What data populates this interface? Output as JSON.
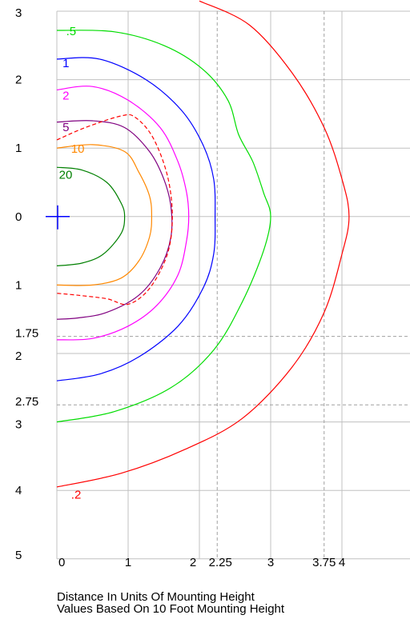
{
  "chart_data": {
    "type": "contour",
    "xlabel": "Distance In Units Of Mounting Height",
    "subtitle": "Values Based On 10 Foot Mounting Height",
    "xlim": [
      0,
      5
    ],
    "ylim": [
      -5,
      3
    ],
    "x_ticks": [
      {
        "value": 0,
        "label": "0"
      },
      {
        "value": 1,
        "label": "1"
      },
      {
        "value": 2,
        "label": "2"
      },
      {
        "value": 2.25,
        "label": "2.25"
      },
      {
        "value": 3,
        "label": "3"
      },
      {
        "value": 3.75,
        "label": "3.75"
      },
      {
        "value": 4,
        "label": "4"
      },
      {
        "value": 5,
        "label": "5"
      }
    ],
    "y_ticks": [
      {
        "value": 3,
        "label": "3"
      },
      {
        "value": 2,
        "label": "2"
      },
      {
        "value": 1,
        "label": "1"
      },
      {
        "value": 0,
        "label": "0"
      },
      {
        "value": -1,
        "label": "1"
      },
      {
        "value": -1.75,
        "label": "1.75"
      },
      {
        "value": -2,
        "label": "2"
      },
      {
        "value": -2.75,
        "label": "2.75"
      },
      {
        "value": -3,
        "label": "3"
      },
      {
        "value": -4,
        "label": "4"
      },
      {
        "value": -5,
        "label": "5"
      }
    ],
    "dashed_x": [
      2.25,
      3.75
    ],
    "dashed_y": [
      -1.75,
      -2.75
    ],
    "grid": true,
    "luminaire": {
      "x": 0,
      "y": 0,
      "color": "#0000ff"
    },
    "series": [
      {
        "label": ".2",
        "color": "#ff0000",
        "dashed": false,
        "label_at": [
          0.2,
          -4.05
        ],
        "points": [
          [
            2,
            3.15
          ],
          [
            2.7,
            2.8
          ],
          [
            3.3,
            2.1
          ],
          [
            3.75,
            1.3
          ],
          [
            4.0,
            0.55
          ],
          [
            4.1,
            0
          ],
          [
            4.0,
            -0.55
          ],
          [
            3.75,
            -1.4
          ],
          [
            3.3,
            -2.2
          ],
          [
            2.6,
            -2.95
          ],
          [
            1.8,
            -3.4
          ],
          [
            0.9,
            -3.75
          ],
          [
            0,
            -3.95
          ]
        ]
      },
      {
        "label": ".5",
        "color": "#00dd00",
        "dashed": false,
        "label_at": [
          0.13,
          2.72
        ],
        "points": [
          [
            0,
            2.72
          ],
          [
            0.8,
            2.7
          ],
          [
            1.5,
            2.5
          ],
          [
            2.05,
            2.15
          ],
          [
            2.4,
            1.7
          ],
          [
            2.55,
            1.2
          ],
          [
            2.75,
            0.8
          ],
          [
            2.9,
            0.35
          ],
          [
            3.0,
            0
          ],
          [
            2.9,
            -0.5
          ],
          [
            2.6,
            -1.25
          ],
          [
            2.2,
            -1.95
          ],
          [
            1.6,
            -2.5
          ],
          [
            0.8,
            -2.85
          ],
          [
            0,
            -3.0
          ]
        ]
      },
      {
        "label": "1",
        "color": "#0000ff",
        "dashed": false,
        "label_at": [
          0.08,
          2.25
        ],
        "points": [
          [
            0,
            2.3
          ],
          [
            0.6,
            2.3
          ],
          [
            1.25,
            2.0
          ],
          [
            1.75,
            1.55
          ],
          [
            2.05,
            1.05
          ],
          [
            2.2,
            0.55
          ],
          [
            2.22,
            0
          ],
          [
            2.2,
            -0.55
          ],
          [
            2.05,
            -1.05
          ],
          [
            1.7,
            -1.6
          ],
          [
            1.15,
            -2.05
          ],
          [
            0.6,
            -2.3
          ],
          [
            0,
            -2.4
          ]
        ]
      },
      {
        "label": "2",
        "color": "#ff00ff",
        "dashed": false,
        "label_at": [
          0.08,
          1.78
        ],
        "points": [
          [
            0,
            1.85
          ],
          [
            0.5,
            1.9
          ],
          [
            1.0,
            1.7
          ],
          [
            1.45,
            1.3
          ],
          [
            1.7,
            0.8
          ],
          [
            1.82,
            0.35
          ],
          [
            1.85,
            0
          ],
          [
            1.82,
            -0.35
          ],
          [
            1.7,
            -0.85
          ],
          [
            1.4,
            -1.3
          ],
          [
            1.0,
            -1.6
          ],
          [
            0.5,
            -1.78
          ],
          [
            0,
            -1.8
          ]
        ]
      },
      {
        "label": "5",
        "color": "#800080",
        "dashed": false,
        "label_at": [
          0.08,
          1.32
        ],
        "points": [
          [
            0,
            1.38
          ],
          [
            0.5,
            1.4
          ],
          [
            0.95,
            1.3
          ],
          [
            1.3,
            0.95
          ],
          [
            1.5,
            0.55
          ],
          [
            1.6,
            0.15
          ],
          [
            1.6,
            -0.3
          ],
          [
            1.45,
            -0.75
          ],
          [
            1.15,
            -1.15
          ],
          [
            0.7,
            -1.4
          ],
          [
            0.3,
            -1.48
          ],
          [
            0,
            -1.5
          ]
        ]
      },
      {
        "label": "",
        "color": "#ff0000",
        "dashed": true,
        "label_at": null,
        "points": [
          [
            0,
            1.12
          ],
          [
            0.4,
            1.3
          ],
          [
            0.9,
            1.47
          ],
          [
            1.1,
            1.45
          ],
          [
            1.35,
            1.15
          ],
          [
            1.55,
            0.6
          ],
          [
            1.62,
            0
          ],
          [
            1.55,
            -0.55
          ],
          [
            1.3,
            -1.05
          ],
          [
            1.0,
            -1.28
          ],
          [
            0.7,
            -1.2
          ],
          [
            0.3,
            -1.15
          ],
          [
            0,
            -1.12
          ]
        ]
      },
      {
        "label": "10",
        "color": "#ff8800",
        "dashed": false,
        "label_at": [
          0.2,
          1.0
        ],
        "points": [
          [
            0,
            1.0
          ],
          [
            0.5,
            1.05
          ],
          [
            0.95,
            0.95
          ],
          [
            1.15,
            0.65
          ],
          [
            1.3,
            0.3
          ],
          [
            1.33,
            0
          ],
          [
            1.3,
            -0.3
          ],
          [
            1.15,
            -0.65
          ],
          [
            0.9,
            -0.9
          ],
          [
            0.5,
            -1.0
          ],
          [
            0,
            -1.0
          ]
        ]
      },
      {
        "label": "20",
        "color": "#008000",
        "dashed": false,
        "label_at": [
          0.03,
          0.62
        ],
        "points": [
          [
            0,
            0.72
          ],
          [
            0.35,
            0.68
          ],
          [
            0.7,
            0.5
          ],
          [
            0.9,
            0.2
          ],
          [
            0.95,
            0
          ],
          [
            0.9,
            -0.25
          ],
          [
            0.65,
            -0.55
          ],
          [
            0.35,
            -0.68
          ],
          [
            0,
            -0.72
          ]
        ]
      }
    ]
  }
}
